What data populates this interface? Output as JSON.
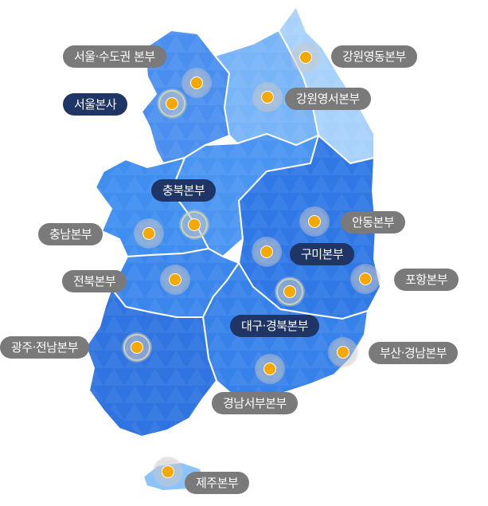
{
  "map": {
    "colors": {
      "seoul_metro": "#4a8ff0",
      "gangwon_west": "#78b4f8",
      "gangwon_east": "#a8d2fb",
      "chungcheong": "#4a95f2",
      "yeongnam_north": "#2f78e6",
      "yeongnam_south": "#3682ea",
      "honam": "#2f74e0",
      "jeju": "#8cc4fa",
      "border": "#ffffff",
      "marker": "#f5a800",
      "label_grey": "#7a7a7a",
      "label_navy": "#1f3566"
    },
    "regions": [
      {
        "id": "seoul-metro",
        "label": "서울·수도권 본부"
      },
      {
        "id": "seoul-hq",
        "label": "서울본사"
      },
      {
        "id": "gangwon-east",
        "label": "강원영동본부"
      },
      {
        "id": "gangwon-west",
        "label": "강원영서본부"
      },
      {
        "id": "chungbuk",
        "label": "충북본부"
      },
      {
        "id": "chungnam",
        "label": "충남본부"
      },
      {
        "id": "andong",
        "label": "안동본부"
      },
      {
        "id": "gumi",
        "label": "구미본부"
      },
      {
        "id": "jeonbuk",
        "label": "전북본부"
      },
      {
        "id": "pohang",
        "label": "포항본부"
      },
      {
        "id": "daegu",
        "label": "대구·경북본부"
      },
      {
        "id": "gwangju",
        "label": "광주·전남본부"
      },
      {
        "id": "busan",
        "label": "부산·경남본부"
      },
      {
        "id": "gyeongnam-west",
        "label": "경남서부본부"
      },
      {
        "id": "jeju",
        "label": "제주본부"
      }
    ]
  }
}
